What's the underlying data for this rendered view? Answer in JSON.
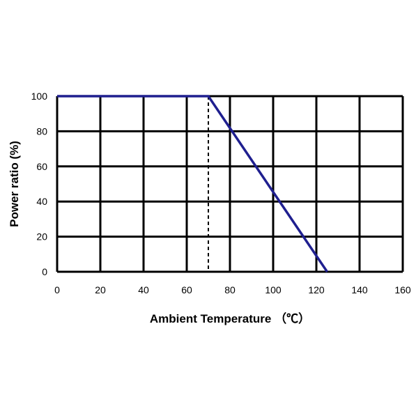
{
  "chart_data": {
    "type": "line",
    "title": "",
    "xlabel": "Ambient Temperature （℃）",
    "ylabel": "Power ratio (%)",
    "xlim": [
      0,
      160
    ],
    "ylim": [
      0,
      100
    ],
    "x_ticks": [
      "0",
      "20",
      "40",
      "60",
      "80",
      "100",
      "120",
      "140",
      "160"
    ],
    "y_ticks": [
      "0",
      "20",
      "40",
      "60",
      "80",
      "100"
    ],
    "grid": true,
    "legend": "none",
    "series": [
      {
        "x": [
          0,
          70,
          125
        ],
        "y": [
          100,
          100,
          0
        ],
        "color": "#1f1f8f"
      }
    ],
    "reference_lines": [
      {
        "orientation": "vertical",
        "x": 70,
        "y_range": [
          0,
          100
        ],
        "style": "dashed",
        "color": "#000000"
      }
    ]
  }
}
